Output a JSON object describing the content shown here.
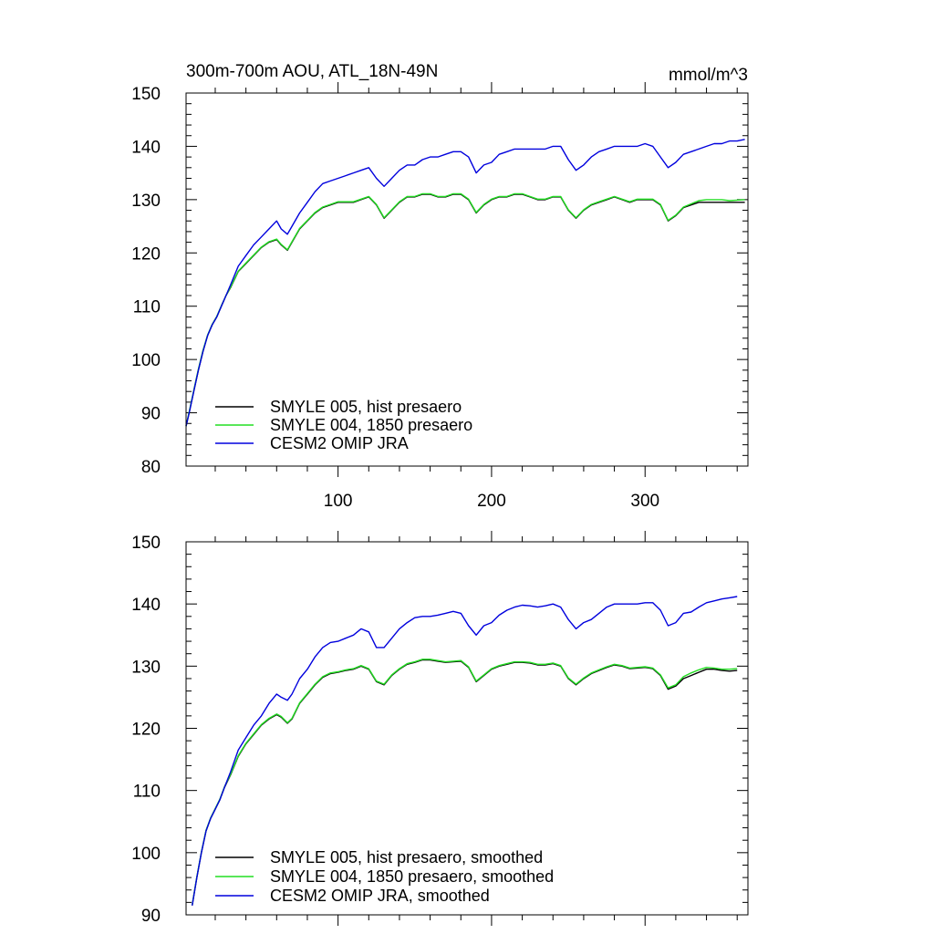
{
  "chart_data": [
    {
      "type": "line",
      "title": "300m-700m AOU, ATL_18N-49N",
      "units_label": "mmol/m^3",
      "xlim": [
        1,
        367
      ],
      "ylim": [
        80,
        150
      ],
      "xticks": [
        100,
        200,
        300
      ],
      "yticks": [
        80,
        90,
        100,
        110,
        120,
        130,
        140,
        150
      ],
      "xtick_labels": [
        "100",
        "200",
        "300"
      ],
      "ytick_labels": [
        "80",
        "90",
        "100",
        "110",
        "120",
        "130",
        "140",
        "150"
      ],
      "legend_position": "bottom-left",
      "series": [
        {
          "name": "SMYLE 005, hist presaero",
          "color": "#000000",
          "x": [
            1,
            3,
            6,
            9,
            12,
            15,
            18,
            21,
            24,
            27,
            30,
            35,
            40,
            45,
            50,
            55,
            60,
            63,
            67,
            70,
            75,
            80,
            85,
            90,
            95,
            100,
            105,
            110,
            115,
            120,
            125,
            130,
            135,
            140,
            145,
            150,
            155,
            160,
            165,
            170,
            175,
            180,
            185,
            190,
            195,
            200,
            205,
            210,
            215,
            220,
            225,
            230,
            235,
            240,
            245,
            250,
            255,
            260,
            265,
            270,
            275,
            280,
            285,
            290,
            295,
            300,
            305,
            310,
            315,
            320,
            325,
            330,
            335,
            340,
            345,
            350,
            355,
            360,
            365
          ],
          "y": [
            87.5,
            90,
            94,
            98,
            101.5,
            104.5,
            106.5,
            108,
            110,
            112,
            113.5,
            116.5,
            118,
            119.5,
            121,
            122,
            122.5,
            121.5,
            120.5,
            122,
            124.5,
            126,
            127.5,
            128.5,
            129,
            129.5,
            129.5,
            129.5,
            130,
            130.5,
            129,
            126.5,
            128,
            129.5,
            130.5,
            130.5,
            131,
            131,
            130.5,
            130.5,
            131,
            131,
            130,
            127.5,
            129,
            130,
            130.5,
            130.5,
            131,
            131,
            130.5,
            130,
            130,
            130.5,
            130.5,
            128,
            126.5,
            128,
            129,
            129.5,
            130,
            130.5,
            130,
            129.5,
            130,
            130,
            130,
            129,
            126,
            127,
            128.5,
            129,
            129.5,
            129.5,
            129.5,
            129.5,
            129.5,
            129.5,
            129.5
          ]
        },
        {
          "name": "SMYLE 004, 1850 presaero",
          "color": "#22dd22",
          "x": [
            1,
            3,
            6,
            9,
            12,
            15,
            18,
            21,
            24,
            27,
            30,
            35,
            40,
            45,
            50,
            55,
            60,
            63,
            67,
            70,
            75,
            80,
            85,
            90,
            95,
            100,
            105,
            110,
            115,
            120,
            125,
            130,
            135,
            140,
            145,
            150,
            155,
            160,
            165,
            170,
            175,
            180,
            185,
            190,
            195,
            200,
            205,
            210,
            215,
            220,
            225,
            230,
            235,
            240,
            245,
            250,
            255,
            260,
            265,
            270,
            275,
            280,
            285,
            290,
            295,
            300,
            305,
            310,
            315,
            320,
            325,
            330,
            335,
            340,
            345,
            350,
            355,
            360,
            365
          ],
          "y": [
            87.5,
            90.2,
            94.2,
            98.2,
            101.7,
            104.6,
            106.6,
            108.1,
            110.1,
            112,
            113.6,
            116.6,
            118.1,
            119.6,
            121.1,
            122.1,
            122.6,
            121.6,
            120.6,
            122.1,
            124.6,
            126.1,
            127.6,
            128.6,
            129.1,
            129.6,
            129.6,
            129.6,
            130.1,
            130.6,
            129.1,
            126.6,
            128.1,
            129.6,
            130.6,
            130.6,
            131.1,
            131.1,
            130.6,
            130.6,
            131.1,
            131.1,
            130.1,
            127.6,
            129.1,
            130.1,
            130.6,
            130.6,
            131.1,
            131.1,
            130.6,
            130.1,
            130.1,
            130.6,
            130.6,
            128.1,
            126.6,
            128.1,
            129.1,
            129.6,
            130.1,
            130.6,
            130.1,
            129.6,
            130.1,
            130.1,
            130.1,
            129.1,
            126.1,
            127.1,
            128.6,
            129.2,
            129.8,
            130,
            130,
            130,
            129.8,
            129.9,
            130
          ]
        },
        {
          "name": "CESM2 OMIP JRA",
          "color": "#0000dd",
          "x": [
            1,
            3,
            6,
            9,
            12,
            15,
            18,
            21,
            24,
            27,
            30,
            35,
            40,
            45,
            50,
            55,
            60,
            63,
            67,
            70,
            75,
            80,
            85,
            90,
            95,
            100,
            105,
            110,
            115,
            120,
            125,
            130,
            135,
            140,
            145,
            150,
            155,
            160,
            165,
            170,
            175,
            180,
            185,
            190,
            195,
            200,
            205,
            210,
            215,
            220,
            225,
            230,
            235,
            240,
            245,
            250,
            255,
            260,
            265,
            270,
            275,
            280,
            285,
            290,
            295,
            300,
            305,
            310,
            315,
            320,
            325,
            330,
            335,
            340,
            345,
            350,
            355,
            360,
            365
          ],
          "y": [
            87.5,
            90,
            94,
            98,
            101.5,
            104.5,
            106.5,
            108,
            110,
            112,
            114,
            117.5,
            119.5,
            121.5,
            123,
            124.5,
            126,
            124.5,
            123.5,
            125,
            127.5,
            129.5,
            131.5,
            133,
            133.5,
            134,
            134.5,
            135,
            135.5,
            136,
            134,
            132.5,
            134,
            135.5,
            136.5,
            136.5,
            137.5,
            138,
            138,
            138.5,
            139,
            139,
            138,
            135,
            136.5,
            137,
            138.5,
            139,
            139.5,
            139.5,
            139.5,
            139.5,
            139.5,
            140,
            140,
            137.5,
            135.5,
            136.5,
            138,
            139,
            139.5,
            140,
            140,
            140,
            140,
            140.5,
            140,
            138,
            136,
            137,
            138.5,
            139,
            139.5,
            140,
            140.5,
            140.5,
            141,
            141,
            141.3
          ]
        }
      ]
    },
    {
      "type": "line",
      "xlim": [
        1,
        367
      ],
      "ylim": [
        90,
        150
      ],
      "xticks": [
        100,
        200,
        300
      ],
      "yticks": [
        90,
        100,
        110,
        120,
        130,
        140,
        150
      ],
      "ytick_labels": [
        "90",
        "100",
        "110",
        "120",
        "130",
        "140",
        "150"
      ],
      "legend_position": "bottom-left",
      "series": [
        {
          "name": "SMYLE 005, hist presaero, smoothed",
          "color": "#000000",
          "x": [
            5,
            8,
            11,
            14,
            17,
            20,
            23,
            26,
            30,
            35,
            40,
            45,
            50,
            55,
            60,
            63,
            67,
            70,
            75,
            80,
            85,
            90,
            95,
            100,
            105,
            110,
            115,
            120,
            125,
            130,
            135,
            140,
            145,
            150,
            155,
            160,
            165,
            170,
            175,
            180,
            185,
            190,
            195,
            200,
            205,
            210,
            215,
            220,
            225,
            230,
            235,
            240,
            245,
            250,
            255,
            260,
            265,
            270,
            275,
            280,
            285,
            290,
            295,
            300,
            305,
            310,
            315,
            320,
            325,
            330,
            335,
            340,
            345,
            350,
            355,
            360
          ],
          "y": [
            91.5,
            96,
            100,
            103.5,
            105.5,
            107,
            108.5,
            110.5,
            112.5,
            115.5,
            117.5,
            119,
            120.5,
            121.5,
            122.2,
            121.8,
            120.8,
            121.5,
            124,
            125.5,
            127,
            128.2,
            128.8,
            129,
            129.3,
            129.5,
            130,
            129.5,
            127.5,
            127,
            128.5,
            129.5,
            130.3,
            130.6,
            131,
            131,
            130.8,
            130.6,
            130.7,
            130.8,
            129.8,
            127.5,
            128.5,
            129.5,
            130,
            130.3,
            130.6,
            130.6,
            130.5,
            130.2,
            130.2,
            130.4,
            130,
            128,
            127,
            128,
            128.8,
            129.3,
            129.8,
            130.2,
            130,
            129.6,
            129.7,
            129.8,
            129.6,
            128.5,
            126.3,
            126.8,
            128,
            128.5,
            129,
            129.5,
            129.5,
            129.3,
            129.2,
            129.3
          ]
        },
        {
          "name": "SMYLE 004, 1850 presaero, smoothed",
          "color": "#22dd22",
          "x": [
            5,
            8,
            11,
            14,
            17,
            20,
            23,
            26,
            30,
            35,
            40,
            45,
            50,
            55,
            60,
            63,
            67,
            70,
            75,
            80,
            85,
            90,
            95,
            100,
            105,
            110,
            115,
            120,
            125,
            130,
            135,
            140,
            145,
            150,
            155,
            160,
            165,
            170,
            175,
            180,
            185,
            190,
            195,
            200,
            205,
            210,
            215,
            220,
            225,
            230,
            235,
            240,
            245,
            250,
            255,
            260,
            265,
            270,
            275,
            280,
            285,
            290,
            295,
            300,
            305,
            310,
            315,
            320,
            325,
            330,
            335,
            340,
            345,
            350,
            355,
            360
          ],
          "y": [
            91.6,
            96.1,
            100.1,
            103.6,
            105.6,
            107.1,
            108.6,
            110.6,
            112.6,
            115.6,
            117.6,
            119.1,
            120.6,
            121.6,
            122.3,
            121.9,
            120.9,
            121.6,
            124.1,
            125.6,
            127.1,
            128.3,
            128.9,
            129.1,
            129.4,
            129.6,
            130.1,
            129.6,
            127.6,
            127.1,
            128.6,
            129.6,
            130.4,
            130.7,
            131.1,
            131.1,
            130.9,
            130.7,
            130.8,
            130.9,
            129.9,
            127.6,
            128.6,
            129.6,
            130.1,
            130.4,
            130.7,
            130.7,
            130.6,
            130.3,
            130.3,
            130.5,
            130.1,
            128.1,
            127.1,
            128.1,
            128.9,
            129.4,
            129.9,
            130.3,
            130.1,
            129.7,
            129.8,
            129.9,
            129.7,
            128.6,
            126.5,
            127,
            128.3,
            128.9,
            129.4,
            129.8,
            129.7,
            129.5,
            129.5,
            129.6
          ]
        },
        {
          "name": "CESM2 OMIP JRA, smoothed",
          "color": "#0000dd",
          "x": [
            5,
            8,
            11,
            14,
            17,
            20,
            23,
            26,
            30,
            35,
            40,
            45,
            50,
            55,
            60,
            63,
            67,
            70,
            75,
            80,
            85,
            90,
            95,
            100,
            105,
            110,
            115,
            120,
            125,
            130,
            135,
            140,
            145,
            150,
            155,
            160,
            165,
            170,
            175,
            180,
            185,
            190,
            195,
            200,
            205,
            210,
            215,
            220,
            225,
            230,
            235,
            240,
            245,
            250,
            255,
            260,
            265,
            270,
            275,
            280,
            285,
            290,
            295,
            300,
            305,
            310,
            315,
            320,
            325,
            330,
            335,
            340,
            345,
            350,
            355,
            360
          ],
          "y": [
            91.5,
            96,
            100,
            103.5,
            105.5,
            107,
            108.5,
            110.5,
            113,
            116.5,
            118.5,
            120.5,
            122,
            124,
            125.5,
            125,
            124.5,
            125.5,
            128,
            129.5,
            131.5,
            133,
            133.8,
            134,
            134.5,
            135,
            136,
            135.5,
            133,
            133,
            134.5,
            136,
            137,
            137.8,
            138,
            138,
            138.2,
            138.5,
            138.8,
            138.5,
            136.5,
            135,
            136.5,
            137,
            138.2,
            139,
            139.5,
            139.8,
            139.7,
            139.5,
            139.7,
            140,
            139.5,
            137.5,
            136,
            137,
            137.5,
            138.5,
            139.5,
            140,
            140,
            140,
            140,
            140.2,
            140.2,
            139,
            136.5,
            137,
            138.5,
            138.7,
            139.5,
            140.2,
            140.5,
            140.8,
            141,
            141.2
          ]
        }
      ]
    }
  ]
}
